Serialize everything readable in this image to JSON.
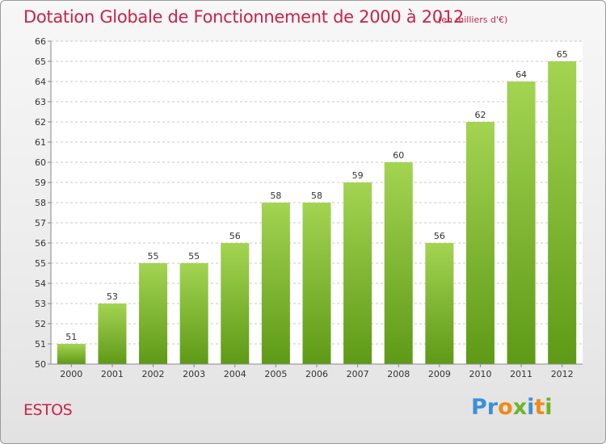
{
  "chart_data": {
    "type": "bar",
    "title": "Dotation Globale de Fonctionnement de 2000 à 2012",
    "subtitle": "(en milliers d'€)",
    "categories": [
      "2000",
      "2001",
      "2002",
      "2003",
      "2004",
      "2005",
      "2006",
      "2007",
      "2008",
      "2009",
      "2010",
      "2011",
      "2012"
    ],
    "values": [
      51,
      53,
      55,
      55,
      56,
      58,
      58,
      59,
      60,
      56,
      62,
      64,
      65
    ],
    "ylim": [
      50,
      66
    ],
    "yticks": [
      "50",
      "51",
      "52",
      "53",
      "54",
      "55",
      "56",
      "57",
      "58",
      "59",
      "60",
      "61",
      "62",
      "63",
      "64",
      "65",
      "66"
    ],
    "xlabel": "",
    "ylabel": "",
    "grid": "horizontal dashed",
    "colors": {
      "bar_light": "#9fd04e",
      "bar_dark": "#5f9b17",
      "title": "#c8234a"
    }
  },
  "footer": {
    "commune": "ESTOS",
    "brand_letters": [
      {
        "char": "P",
        "color": "#3d8fd6"
      },
      {
        "char": "r",
        "color": "#3d8fd6"
      },
      {
        "char": "o",
        "color": "#ef8a1a"
      },
      {
        "char": "x",
        "color": "#6bb52a"
      },
      {
        "char": "i",
        "color": "#3d8fd6"
      },
      {
        "char": "t",
        "color": "#ef8a1a"
      },
      {
        "char": "i",
        "color": "#6bb52a"
      }
    ]
  }
}
